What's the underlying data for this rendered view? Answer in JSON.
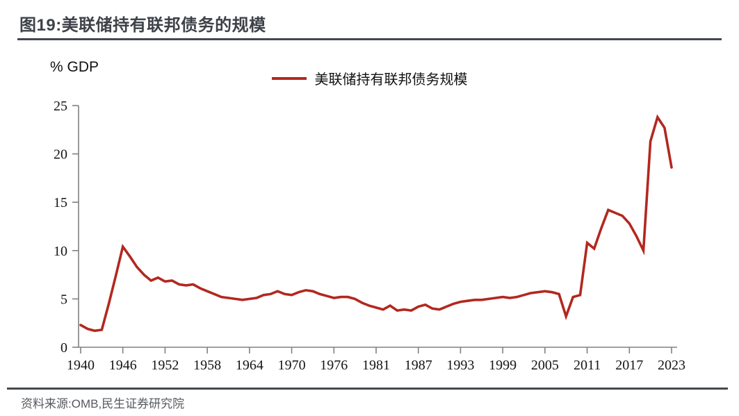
{
  "header": {
    "title": "图19:美联储持有联邦债务的规模"
  },
  "footer": {
    "source": "资料来源:OMB,民生证券研究院"
  },
  "colors": {
    "line": "#b2281f",
    "axis": "#808080",
    "divider": "#44484e",
    "title_text": "#3d4248",
    "source_text": "#56595e"
  },
  "chart_data": {
    "type": "line",
    "title": "图19:美联储持有联邦债务的规模",
    "ylabel_unit": "% GDP",
    "legend": [
      "美联储持有联邦债务规模"
    ],
    "legend_position": "top",
    "grid": false,
    "ylim": [
      0,
      25
    ],
    "y_ticks": [
      0,
      5,
      10,
      15,
      20,
      25
    ],
    "x_tick_labels": [
      "1940",
      "1946",
      "1952",
      "1958",
      "1964",
      "1970",
      "1976",
      "1981",
      "1987",
      "1993",
      "1999",
      "2005",
      "2011",
      "2017",
      "2023"
    ],
    "categories": [
      "1940",
      "1941",
      "1942",
      "1943",
      "1944",
      "1945",
      "1946",
      "1947",
      "1948",
      "1949",
      "1950",
      "1951",
      "1952",
      "1953",
      "1954",
      "1955",
      "1956",
      "1957",
      "1958",
      "1959",
      "1960",
      "1961",
      "1962",
      "1963",
      "1964",
      "1965",
      "1966",
      "1967",
      "1968",
      "1969",
      "1970",
      "1971",
      "1972",
      "1973",
      "1974",
      "1975",
      "1976",
      "TQ",
      "1977",
      "1978",
      "1979",
      "1980",
      "1981",
      "1982",
      "1983",
      "1984",
      "1985",
      "1986",
      "1987",
      "1988",
      "1989",
      "1990",
      "1991",
      "1992",
      "1993",
      "1994",
      "1995",
      "1996",
      "1997",
      "1998",
      "1999",
      "2000",
      "2001",
      "2002",
      "2003",
      "2004",
      "2005",
      "2006",
      "2007",
      "2008",
      "2009",
      "2010",
      "2011",
      "2012",
      "2013",
      "2014",
      "2015",
      "2016",
      "2017",
      "2018",
      "2019",
      "2020",
      "2021",
      "2022",
      "2023"
    ],
    "series": [
      {
        "name": "美联储持有联邦债务规模",
        "color": "#b2281f",
        "values": [
          2.3,
          1.9,
          1.7,
          1.8,
          4.5,
          7.4,
          10.4,
          9.4,
          8.3,
          7.5,
          6.9,
          7.2,
          6.8,
          6.9,
          6.5,
          6.4,
          6.5,
          6.1,
          5.8,
          5.5,
          5.2,
          5.1,
          5.0,
          4.9,
          5.0,
          5.1,
          5.4,
          5.5,
          5.8,
          5.5,
          5.4,
          5.7,
          5.9,
          5.8,
          5.5,
          5.3,
          5.1,
          5.2,
          5.2,
          5.0,
          4.6,
          4.3,
          4.1,
          3.9,
          4.3,
          3.8,
          3.9,
          3.8,
          4.2,
          4.4,
          4.0,
          3.9,
          4.2,
          4.5,
          4.7,
          4.8,
          4.9,
          4.9,
          5.0,
          5.1,
          5.2,
          5.1,
          5.2,
          5.4,
          5.6,
          5.7,
          5.8,
          5.7,
          5.5,
          3.2,
          5.2,
          5.4,
          10.8,
          10.2,
          12.3,
          14.2,
          13.9,
          13.6,
          12.8,
          11.5,
          10.0,
          21.3,
          23.8,
          22.7,
          18.6
        ]
      }
    ]
  }
}
